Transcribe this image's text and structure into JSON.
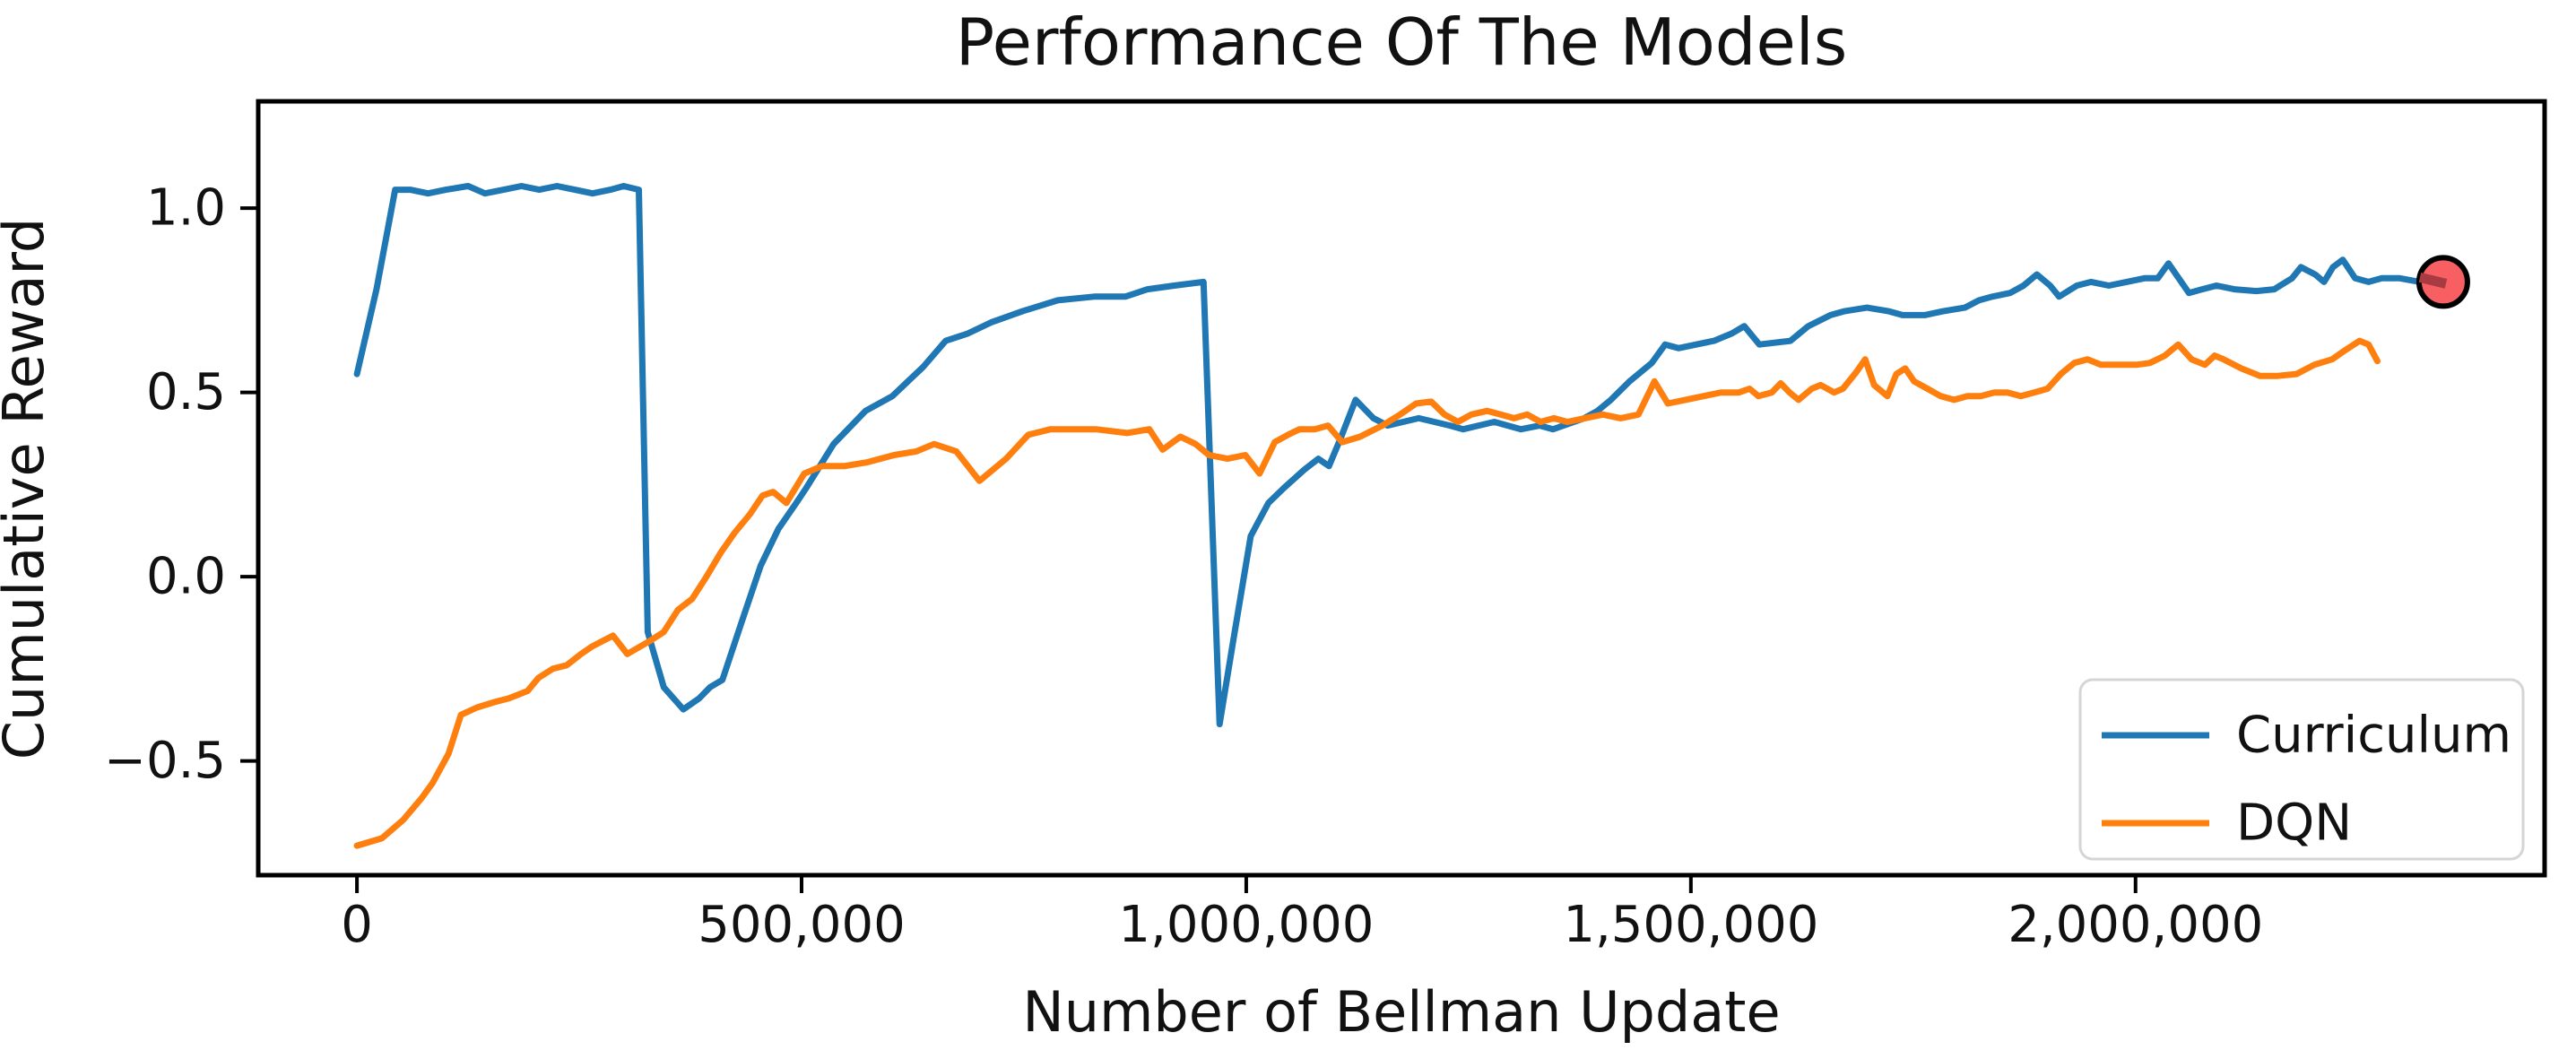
{
  "header": {
    "title": "Performance Of The Models"
  },
  "chart_data": {
    "type": "line",
    "title": "Performance Of The Models",
    "xlabel": "Number of Bellman Update",
    "ylabel": "Cumulative Reward",
    "xlim": [
      -111000,
      2460000
    ],
    "ylim": [
      -0.81,
      1.29
    ],
    "grid": false,
    "x_ticks": [
      {
        "value": 0,
        "label": "0"
      },
      {
        "value": 500000,
        "label": "500,000"
      },
      {
        "value": 1000000,
        "label": "1,000,000"
      },
      {
        "value": 1500000,
        "label": "1,500,000"
      },
      {
        "value": 2000000,
        "label": "2,000,000"
      }
    ],
    "y_ticks": [
      {
        "value": 1.0,
        "label": "1.0"
      },
      {
        "value": 0.5,
        "label": "0.5"
      },
      {
        "value": 0.0,
        "label": "0.0"
      },
      {
        "value": -0.5,
        "label": "−0.5"
      }
    ],
    "legend": {
      "position": "lower right",
      "entries": [
        {
          "label": "Curriculum",
          "color": "#1f77b4"
        },
        {
          "label": "DQN",
          "color": "#ff7f0e"
        }
      ]
    },
    "series": [
      {
        "name": "Curriculum",
        "color": "#1f77b4",
        "points": [
          [
            0,
            0.55
          ],
          [
            22000,
            0.78
          ],
          [
            43000,
            1.05
          ],
          [
            60000,
            1.05
          ],
          [
            80000,
            1.04
          ],
          [
            100000,
            1.05
          ],
          [
            125000,
            1.06
          ],
          [
            144000,
            1.04
          ],
          [
            165000,
            1.05
          ],
          [
            185000,
            1.06
          ],
          [
            205000,
            1.05
          ],
          [
            225000,
            1.06
          ],
          [
            245000,
            1.05
          ],
          [
            265000,
            1.04
          ],
          [
            285000,
            1.05
          ],
          [
            300000,
            1.06
          ],
          [
            317000,
            1.05
          ],
          [
            327000,
            -0.15
          ],
          [
            345000,
            -0.3
          ],
          [
            367000,
            -0.36
          ],
          [
            385000,
            -0.33
          ],
          [
            397000,
            -0.3
          ],
          [
            411000,
            -0.28
          ],
          [
            433000,
            -0.12
          ],
          [
            454000,
            0.03
          ],
          [
            474000,
            0.13
          ],
          [
            494000,
            0.2
          ],
          [
            505000,
            0.24
          ],
          [
            536000,
            0.36
          ],
          [
            572000,
            0.45
          ],
          [
            602000,
            0.49
          ],
          [
            637000,
            0.57
          ],
          [
            662000,
            0.64
          ],
          [
            687000,
            0.66
          ],
          [
            713000,
            0.69
          ],
          [
            748000,
            0.72
          ],
          [
            788000,
            0.75
          ],
          [
            829000,
            0.76
          ],
          [
            864000,
            0.76
          ],
          [
            889000,
            0.78
          ],
          [
            919000,
            0.79
          ],
          [
            952000,
            0.8
          ],
          [
            970000,
            -0.4
          ],
          [
            985000,
            -0.18
          ],
          [
            1005000,
            0.11
          ],
          [
            1025000,
            0.2
          ],
          [
            1042000,
            0.24
          ],
          [
            1065000,
            0.29
          ],
          [
            1081000,
            0.32
          ],
          [
            1093000,
            0.3
          ],
          [
            1106000,
            0.375
          ],
          [
            1123000,
            0.48
          ],
          [
            1143000,
            0.43
          ],
          [
            1159000,
            0.41
          ],
          [
            1194000,
            0.43
          ],
          [
            1229000,
            0.41
          ],
          [
            1244000,
            0.4
          ],
          [
            1279000,
            0.42
          ],
          [
            1309000,
            0.4
          ],
          [
            1330000,
            0.41
          ],
          [
            1345000,
            0.4
          ],
          [
            1380000,
            0.43
          ],
          [
            1395000,
            0.45
          ],
          [
            1410000,
            0.48
          ],
          [
            1431000,
            0.53
          ],
          [
            1456000,
            0.58
          ],
          [
            1471000,
            0.63
          ],
          [
            1486000,
            0.62
          ],
          [
            1506000,
            0.63
          ],
          [
            1526000,
            0.64
          ],
          [
            1546000,
            0.66
          ],
          [
            1560000,
            0.68
          ],
          [
            1577000,
            0.63
          ],
          [
            1612000,
            0.64
          ],
          [
            1632000,
            0.68
          ],
          [
            1657000,
            0.71
          ],
          [
            1672000,
            0.72
          ],
          [
            1698000,
            0.73
          ],
          [
            1723000,
            0.72
          ],
          [
            1738000,
            0.71
          ],
          [
            1763000,
            0.71
          ],
          [
            1783000,
            0.72
          ],
          [
            1808000,
            0.73
          ],
          [
            1824000,
            0.75
          ],
          [
            1839000,
            0.76
          ],
          [
            1859000,
            0.77
          ],
          [
            1874000,
            0.79
          ],
          [
            1889000,
            0.82
          ],
          [
            1904000,
            0.79
          ],
          [
            1914000,
            0.76
          ],
          [
            1934000,
            0.79
          ],
          [
            1950000,
            0.8
          ],
          [
            1970000,
            0.79
          ],
          [
            1990000,
            0.8
          ],
          [
            2010000,
            0.81
          ],
          [
            2025000,
            0.81
          ],
          [
            2037000,
            0.85
          ],
          [
            2060000,
            0.77
          ],
          [
            2075000,
            0.78
          ],
          [
            2091000,
            0.79
          ],
          [
            2111000,
            0.78
          ],
          [
            2136000,
            0.775
          ],
          [
            2156000,
            0.78
          ],
          [
            2176000,
            0.81
          ],
          [
            2186000,
            0.84
          ],
          [
            2202000,
            0.82
          ],
          [
            2212000,
            0.8
          ],
          [
            2222000,
            0.84
          ],
          [
            2233000,
            0.86
          ],
          [
            2247000,
            0.81
          ],
          [
            2262000,
            0.8
          ],
          [
            2277000,
            0.81
          ],
          [
            2297000,
            0.81
          ],
          [
            2320000,
            0.8
          ],
          [
            2339000,
            0.8
          ]
        ]
      },
      {
        "name": "DQN",
        "color": "#ff7f0e",
        "points": [
          [
            0,
            -0.73
          ],
          [
            28000,
            -0.71
          ],
          [
            52000,
            -0.66
          ],
          [
            73000,
            -0.6
          ],
          [
            85000,
            -0.56
          ],
          [
            103000,
            -0.48
          ],
          [
            117000,
            -0.375
          ],
          [
            135000,
            -0.355
          ],
          [
            155000,
            -0.34
          ],
          [
            171000,
            -0.33
          ],
          [
            192000,
            -0.31
          ],
          [
            204000,
            -0.275
          ],
          [
            220000,
            -0.25
          ],
          [
            236000,
            -0.24
          ],
          [
            252000,
            -0.21
          ],
          [
            264000,
            -0.19
          ],
          [
            276000,
            -0.175
          ],
          [
            288000,
            -0.16
          ],
          [
            304000,
            -0.21
          ],
          [
            329000,
            -0.175
          ],
          [
            345000,
            -0.15
          ],
          [
            361000,
            -0.09
          ],
          [
            377000,
            -0.06
          ],
          [
            393000,
            0.0
          ],
          [
            409000,
            0.065
          ],
          [
            425000,
            0.12
          ],
          [
            442000,
            0.17
          ],
          [
            456000,
            0.22
          ],
          [
            468000,
            0.23
          ],
          [
            483000,
            0.2
          ],
          [
            503000,
            0.28
          ],
          [
            523000,
            0.3
          ],
          [
            548000,
            0.3
          ],
          [
            573000,
            0.31
          ],
          [
            604000,
            0.33
          ],
          [
            629000,
            0.34
          ],
          [
            649000,
            0.36
          ],
          [
            674000,
            0.34
          ],
          [
            700000,
            0.26
          ],
          [
            730000,
            0.32
          ],
          [
            755000,
            0.385
          ],
          [
            780000,
            0.4
          ],
          [
            805000,
            0.4
          ],
          [
            831000,
            0.4
          ],
          [
            866000,
            0.39
          ],
          [
            891000,
            0.4
          ],
          [
            906000,
            0.345
          ],
          [
            926000,
            0.38
          ],
          [
            943000,
            0.36
          ],
          [
            958000,
            0.33
          ],
          [
            979000,
            0.32
          ],
          [
            999000,
            0.33
          ],
          [
            1015000,
            0.28
          ],
          [
            1032000,
            0.365
          ],
          [
            1047000,
            0.385
          ],
          [
            1060000,
            0.4
          ],
          [
            1077000,
            0.4
          ],
          [
            1092000,
            0.41
          ],
          [
            1108000,
            0.365
          ],
          [
            1128000,
            0.38
          ],
          [
            1153000,
            0.41
          ],
          [
            1173000,
            0.44
          ],
          [
            1191000,
            0.47
          ],
          [
            1208000,
            0.475
          ],
          [
            1223000,
            0.44
          ],
          [
            1238000,
            0.42
          ],
          [
            1253000,
            0.44
          ],
          [
            1271000,
            0.45
          ],
          [
            1286000,
            0.44
          ],
          [
            1301000,
            0.43
          ],
          [
            1316000,
            0.44
          ],
          [
            1331000,
            0.42
          ],
          [
            1346000,
            0.43
          ],
          [
            1361000,
            0.42
          ],
          [
            1381000,
            0.43
          ],
          [
            1401000,
            0.44
          ],
          [
            1421000,
            0.43
          ],
          [
            1441000,
            0.44
          ],
          [
            1459000,
            0.53
          ],
          [
            1474000,
            0.47
          ],
          [
            1494000,
            0.48
          ],
          [
            1514000,
            0.49
          ],
          [
            1534000,
            0.5
          ],
          [
            1554000,
            0.5
          ],
          [
            1566000,
            0.51
          ],
          [
            1576000,
            0.49
          ],
          [
            1591000,
            0.5
          ],
          [
            1601000,
            0.525
          ],
          [
            1611000,
            0.5
          ],
          [
            1621000,
            0.48
          ],
          [
            1636000,
            0.51
          ],
          [
            1646000,
            0.52
          ],
          [
            1661000,
            0.5
          ],
          [
            1671000,
            0.51
          ],
          [
            1686000,
            0.555
          ],
          [
            1696000,
            0.59
          ],
          [
            1706000,
            0.52
          ],
          [
            1721000,
            0.49
          ],
          [
            1731000,
            0.55
          ],
          [
            1741000,
            0.565
          ],
          [
            1751000,
            0.53
          ],
          [
            1766000,
            0.51
          ],
          [
            1781000,
            0.49
          ],
          [
            1796000,
            0.48
          ],
          [
            1811000,
            0.49
          ],
          [
            1826000,
            0.49
          ],
          [
            1841000,
            0.5
          ],
          [
            1856000,
            0.5
          ],
          [
            1871000,
            0.49
          ],
          [
            1886000,
            0.5
          ],
          [
            1901000,
            0.51
          ],
          [
            1916000,
            0.55
          ],
          [
            1931000,
            0.58
          ],
          [
            1946000,
            0.59
          ],
          [
            1961000,
            0.575
          ],
          [
            1981000,
            0.575
          ],
          [
            2001000,
            0.575
          ],
          [
            2016000,
            0.58
          ],
          [
            2033000,
            0.6
          ],
          [
            2048000,
            0.63
          ],
          [
            2063000,
            0.59
          ],
          [
            2078000,
            0.575
          ],
          [
            2089000,
            0.6
          ],
          [
            2099000,
            0.59
          ],
          [
            2119000,
            0.565
          ],
          [
            2140000,
            0.545
          ],
          [
            2160000,
            0.545
          ],
          [
            2181000,
            0.55
          ],
          [
            2201000,
            0.575
          ],
          [
            2221000,
            0.59
          ],
          [
            2236000,
            0.615
          ],
          [
            2252000,
            0.64
          ],
          [
            2262000,
            0.63
          ],
          [
            2272000,
            0.585
          ]
        ]
      }
    ],
    "annotations": [
      {
        "type": "end-marker",
        "shape": "circle",
        "series": "Curriculum",
        "x": 2346000,
        "y": 0.8,
        "fill": "#f85f63",
        "stroke": "#000000",
        "inner_dash_color": "#a83a42"
      }
    ],
    "colors": {
      "background": "#ffffff",
      "frame": "#000000",
      "legend_border": "#d5d5d5",
      "text": "#111111"
    }
  }
}
